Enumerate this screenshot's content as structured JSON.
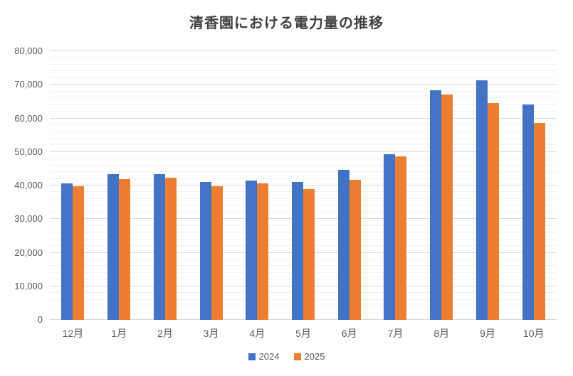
{
  "chart_data": {
    "type": "bar",
    "title": "清香園における電力量の推移",
    "categories": [
      "12月",
      "1月",
      "2月",
      "3月",
      "4月",
      "5月",
      "6月",
      "7月",
      "8月",
      "9月",
      "10月"
    ],
    "series": [
      {
        "name": "2024",
        "color": "#4472C4",
        "values": [
          40700,
          43400,
          43300,
          41000,
          41400,
          41100,
          44700,
          49400,
          68400,
          71400,
          64200
        ]
      },
      {
        "name": "2025",
        "color": "#ED7D31",
        "values": [
          39800,
          41900,
          42400,
          39800,
          40600,
          39000,
          41600,
          48600,
          67000,
          64500,
          58600
        ]
      }
    ],
    "ylim": [
      0,
      80000
    ],
    "y_tick_step": 10000,
    "y_minor_step": 2000,
    "y_tick_labels": [
      "0",
      "10,000",
      "20,000",
      "30,000",
      "40,000",
      "50,000",
      "60,000",
      "70,000",
      "80,000"
    ],
    "grid": "horizontal major and minor gridlines",
    "legend_position": "bottom-center",
    "title_color": "#404040",
    "axis_label_color": "#595959",
    "major_grid_color": "#d9d9d9",
    "minor_grid_color": "#f2f2f2"
  }
}
